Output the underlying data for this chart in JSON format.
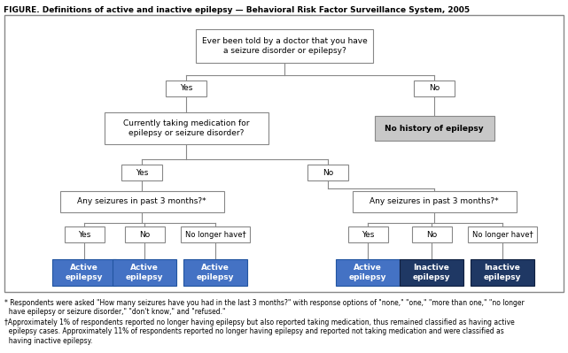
{
  "title": "FIGURE. Definitions of active and inactive epilepsy — Behavioral Risk Factor Surveillance System, 2005",
  "footnote1": "* Respondents were asked \"How many seizures have you had in the last 3 months?\" with response options of \"none,\" \"one,\" \"more than one,\" \"no longer\n  have epilepsy or seizure disorder,\" \"don't know,\" and \"refused.\"",
  "footnote2": "†Approximately 1% of respondents reported no longer having epilepsy but also reported taking medication, thus remained classified as having active\n  epilepsy cases. Approximately 11% of respondents reported no longer having epilepsy and reported not taking medication and were classified as\n  having inactive epilepsy.",
  "box_color_white": "#ffffff",
  "box_color_gray": "#c8c8c8",
  "box_color_light_blue": "#4472c4",
  "box_color_dark_blue": "#1f3864",
  "box_border": "#888888",
  "text_color_dark": "#000000",
  "text_color_white": "#ffffff",
  "bg_color": "#ffffff"
}
